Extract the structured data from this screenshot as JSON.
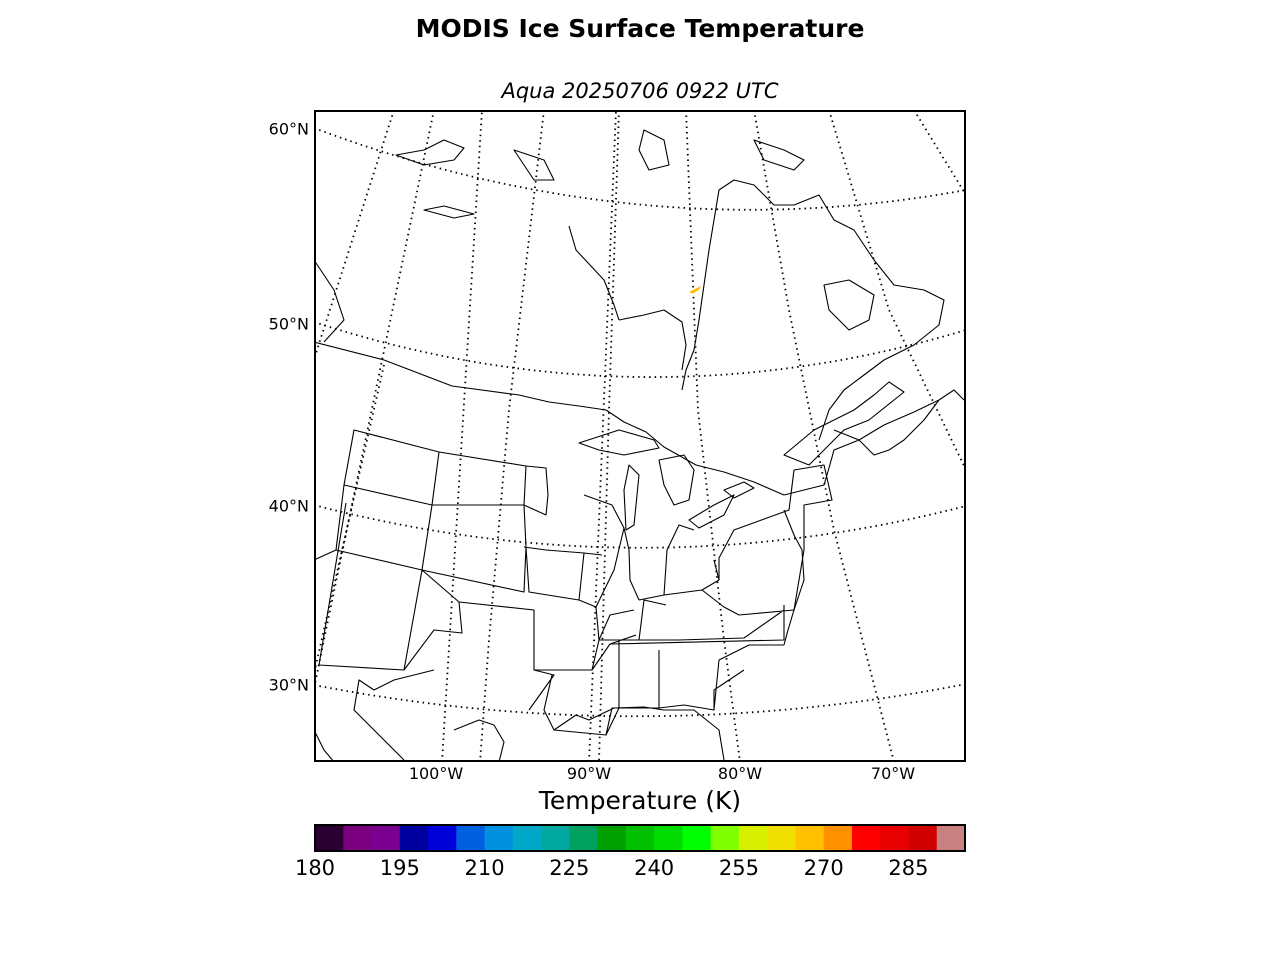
{
  "title": "MODIS Ice Surface Temperature",
  "subtitle": "Aqua 20250706 0922 UTC",
  "map": {
    "parallels": [
      {
        "label": "60°N"
      },
      {
        "label": "50°N"
      },
      {
        "label": "40°N"
      },
      {
        "label": "30°N"
      }
    ],
    "meridians": [
      {
        "label": "100°W"
      },
      {
        "label": "90°W"
      },
      {
        "label": "80°W"
      },
      {
        "label": "70°W"
      }
    ],
    "colors": {
      "coastline": "#000000",
      "frame": "#000000",
      "ice_pixel": "#ffc000"
    }
  },
  "colorbar": {
    "title": "Temperature (K)",
    "min": 180,
    "max": 295,
    "ticks": [
      "180",
      "195",
      "210",
      "225",
      "240",
      "255",
      "270",
      "285"
    ],
    "colors": [
      "#2a0033",
      "#7a0080",
      "#7a0090",
      "#0000a0",
      "#0000d8",
      "#0060e0",
      "#0090e0",
      "#00a8c8",
      "#00a8a0",
      "#00a060",
      "#00a000",
      "#00c000",
      "#00dc00",
      "#00ff00",
      "#80ff00",
      "#d8f000",
      "#f0e000",
      "#ffc000",
      "#ff9000",
      "#ff0000",
      "#e80000",
      "#d00000",
      "#c88080"
    ]
  }
}
